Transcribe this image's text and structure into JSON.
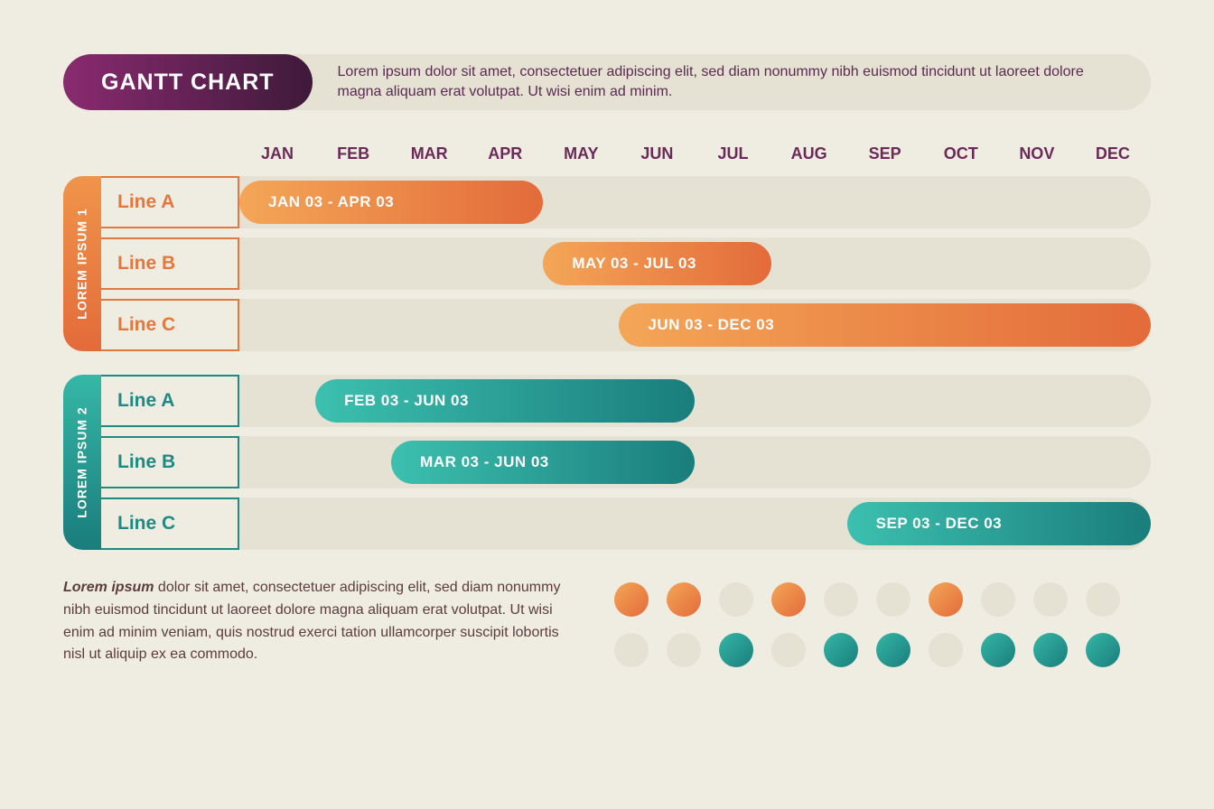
{
  "title": "GANTT CHART",
  "header_desc": "Lorem ipsum dolor sit amet, consectetuer adipiscing elit, sed diam nonummy nibh euismod tincidunt ut laoreet dolore magna aliquam erat volutpat. Ut wisi enim ad minim.",
  "months": [
    "JAN",
    "FEB",
    "MAR",
    "APR",
    "MAY",
    "JUN",
    "JUL",
    "AUG",
    "SEP",
    "OCT",
    "NOV",
    "DEC"
  ],
  "colors": {
    "bg": "#efece1",
    "track": "#e5e1d3",
    "purple_dark": "#3e1a3a",
    "purple": "#6a2a58",
    "orange_grad_from": "#f4a657",
    "orange_grad_to": "#e36b3a",
    "orange_border": "#e3783e",
    "teal_grad_from": "#35b7a6",
    "teal_grad_to": "#1a7d7c",
    "teal_border": "#1f8a84"
  },
  "groups": [
    {
      "label": "LOREM IPSUM 1",
      "tab_grad_from": "#f0944a",
      "tab_grad_to": "#e36b3a",
      "line_color": "#e3783e",
      "bar_grad_from": "#f4a657",
      "bar_grad_to": "#e36b3a",
      "lines": [
        {
          "name": "Line A",
          "bar_label": "JAN 03 - APR 03",
          "start": 0,
          "span": 4
        },
        {
          "name": "Line B",
          "bar_label": "MAY 03 - JUL 03",
          "start": 4,
          "span": 3
        },
        {
          "name": "Line C",
          "bar_label": "JUN 03 - DEC 03",
          "start": 5,
          "span": 7
        }
      ]
    },
    {
      "label": "LOREM IPSUM 2",
      "tab_grad_from": "#35b7a6",
      "tab_grad_to": "#1a7d7c",
      "line_color": "#1f8a84",
      "bar_grad_from": "#3cc0af",
      "bar_grad_to": "#1a7d7c",
      "lines": [
        {
          "name": "Line A",
          "bar_label": "FEB 03 - JUN 03",
          "start": 1,
          "span": 5
        },
        {
          "name": "Line B",
          "bar_label": "MAR 03 - JUN 03",
          "start": 2,
          "span": 4
        },
        {
          "name": "Line C",
          "bar_label": "SEP 03 - DEC 03",
          "start": 8,
          "span": 4
        }
      ]
    }
  ],
  "footer_bold": "Lorem ipsum",
  "footer_text": " dolor sit amet, consectetuer adipiscing elit, sed diam nonummy nibh euismod tincidunt ut laoreet dolore magna aliquam erat volutpat. Ut wisi enim ad minim veniam, quis nostrud exerci tation ullamcorper suscipit lobortis nisl ut aliquip ex ea commodo.",
  "dot_rows": [
    {
      "active_grad_from": "#f4a657",
      "active_grad_to": "#e36b3a",
      "pattern": [
        "on",
        "on",
        "off",
        "on",
        "off",
        "off",
        "on",
        "off",
        "off",
        "off"
      ]
    },
    {
      "active_grad_from": "#35b7a6",
      "active_grad_to": "#1a7d7c",
      "pattern": [
        "off",
        "off",
        "on",
        "off",
        "on",
        "on",
        "off",
        "on",
        "on",
        "on"
      ]
    }
  ],
  "dot_off_color": "#e5e1d3",
  "typography": {
    "title_fontsize": 25,
    "month_fontsize": 18,
    "line_label_fontsize": 21,
    "bar_label_fontsize": 17,
    "body_fontsize": 16
  }
}
